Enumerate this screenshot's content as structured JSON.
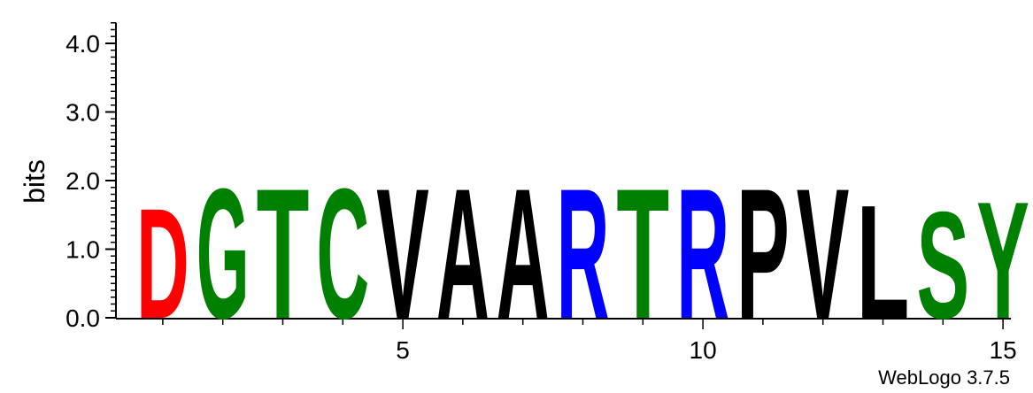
{
  "chart_data": {
    "type": "sequence-logo",
    "ylabel": "bits",
    "ylim": [
      0,
      4.3
    ],
    "y_ticks": [
      "0.0",
      "1.0",
      "2.0",
      "3.0",
      "4.0"
    ],
    "x_ticks": [
      "5",
      "10",
      "15"
    ],
    "positions": [
      1,
      2,
      3,
      4,
      5,
      6,
      7,
      8,
      9,
      10,
      11,
      12,
      13,
      14,
      15
    ],
    "letters": [
      "D",
      "G",
      "T",
      "C",
      "V",
      "A",
      "A",
      "R",
      "T",
      "R",
      "P",
      "V",
      "L",
      "S",
      "Y"
    ],
    "heights": [
      1.65,
      1.95,
      1.95,
      1.95,
      1.95,
      1.95,
      1.95,
      1.95,
      1.95,
      1.95,
      1.95,
      1.95,
      1.7,
      1.6,
      1.75
    ],
    "colors": {
      "D": "#ff0000",
      "G": "#008000",
      "T": "#008000",
      "C": "#008000",
      "S": "#008000",
      "Y": "#008000",
      "R": "#0000ff",
      "V": "#000000",
      "A": "#000000",
      "P": "#000000",
      "L": "#000000"
    }
  },
  "footer": {
    "credit": "WebLogo 3.7.5"
  }
}
